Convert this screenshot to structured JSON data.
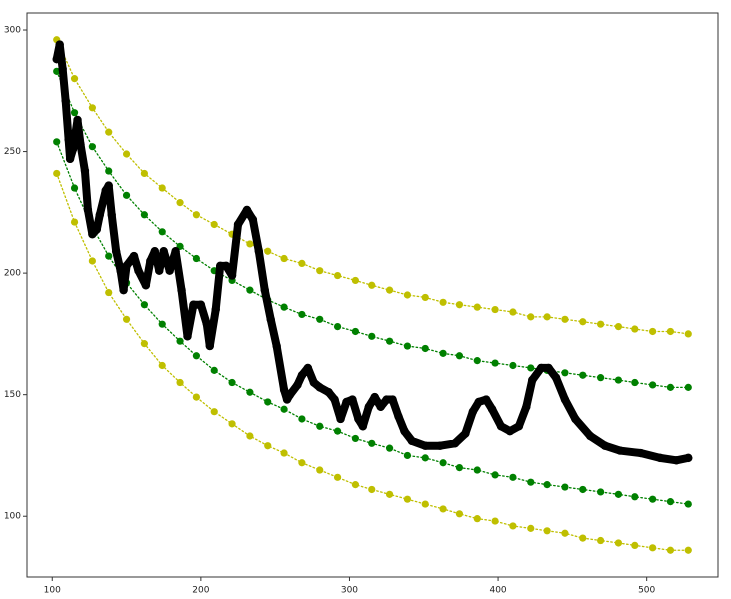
{
  "chart_data": {
    "type": "scatter",
    "xlim": [
      83,
      548
    ],
    "ylim": [
      75,
      307
    ],
    "xticks": [
      100,
      200,
      300,
      400,
      500
    ],
    "yticks": [
      100,
      150,
      200,
      250,
      300
    ],
    "grid": false,
    "x": [
      103,
      115,
      127,
      138,
      150,
      162,
      174,
      186,
      197,
      209,
      221,
      233,
      245,
      256,
      268,
      280,
      292,
      304,
      315,
      327,
      339,
      351,
      363,
      374,
      386,
      398,
      410,
      422,
      433,
      445,
      457,
      469,
      481,
      492,
      504,
      516,
      528
    ],
    "series": [
      {
        "color": "#bfbf00",
        "linestyle": "dotted",
        "values": [
          296,
          280,
          268,
          258,
          249,
          241,
          235,
          229,
          224,
          220,
          216,
          212,
          209,
          206,
          204,
          201,
          199,
          197,
          195,
          193,
          191,
          190,
          188,
          187,
          186,
          185,
          184,
          182,
          182,
          181,
          180,
          179,
          178,
          177,
          176,
          176,
          175
        ]
      },
      {
        "color": "#008000",
        "linestyle": "dotted",
        "values": [
          283,
          266,
          252,
          242,
          232,
          224,
          217,
          211,
          206,
          201,
          197,
          193,
          189,
          186,
          183,
          181,
          178,
          176,
          174,
          172,
          170,
          169,
          167,
          166,
          164,
          163,
          162,
          161,
          160,
          159,
          158,
          157,
          156,
          155,
          154,
          153,
          153
        ]
      },
      {
        "color": "#008000",
        "linestyle": "dotted",
        "values": [
          254,
          235,
          219,
          207,
          196,
          187,
          179,
          172,
          166,
          160,
          155,
          151,
          147,
          144,
          140,
          137,
          135,
          132,
          130,
          128,
          125,
          124,
          122,
          120,
          119,
          117,
          116,
          114,
          113,
          112,
          111,
          110,
          109,
          108,
          107,
          106,
          105
        ]
      },
      {
        "color": "#bfbf00",
        "linestyle": "dotted",
        "values": [
          241,
          221,
          205,
          192,
          181,
          171,
          162,
          155,
          149,
          143,
          138,
          133,
          129,
          126,
          122,
          119,
          116,
          113,
          111,
          109,
          107,
          105,
          103,
          101,
          99,
          98,
          96,
          95,
          94,
          93,
          91,
          90,
          89,
          88,
          87,
          86,
          86
        ]
      },
      {
        "color": "#000000",
        "linestyle": "solid",
        "x": [
          103,
          105,
          107,
          109,
          111,
          112,
          114,
          117,
          119,
          122,
          124,
          127,
          130,
          132,
          136,
          138,
          140,
          143,
          146,
          148,
          150,
          155,
          158,
          163,
          166,
          169,
          172,
          175,
          179,
          183,
          187,
          191,
          195,
          200,
          204,
          206,
          210,
          213,
          217,
          221,
          225,
          231,
          235,
          239,
          243,
          247,
          251,
          256,
          258,
          260,
          265,
          268,
          272,
          276,
          280,
          286,
          290,
          294,
          298,
          302,
          306,
          309,
          313,
          317,
          321,
          325,
          329,
          333,
          337,
          342,
          351,
          361,
          371,
          378,
          383,
          387,
          392,
          396,
          402,
          408,
          414,
          419,
          423,
          429,
          434,
          439,
          445,
          452,
          462,
          472,
          482,
          496,
          509,
          520,
          528
        ],
        "values": [
          288,
          294,
          284,
          271,
          255,
          247,
          251,
          263,
          253,
          242,
          226,
          216,
          218,
          224,
          234,
          236,
          224,
          209,
          201,
          193,
          203,
          207,
          201,
          195,
          205,
          209,
          201,
          209,
          201,
          209,
          193,
          174,
          187,
          187,
          179,
          170,
          185,
          203,
          203,
          199,
          220,
          226,
          222,
          209,
          193,
          181,
          170,
          152,
          148,
          150,
          154,
          158,
          161,
          155,
          153,
          151,
          148,
          140,
          147,
          148,
          140,
          137,
          145,
          149,
          145,
          148,
          148,
          141,
          135,
          131,
          129,
          129,
          130,
          134,
          143,
          147,
          148,
          144,
          137,
          135,
          137,
          145,
          156,
          161,
          161,
          157,
          148,
          140,
          133,
          129,
          127,
          126,
          124,
          123,
          124
        ]
      }
    ]
  }
}
